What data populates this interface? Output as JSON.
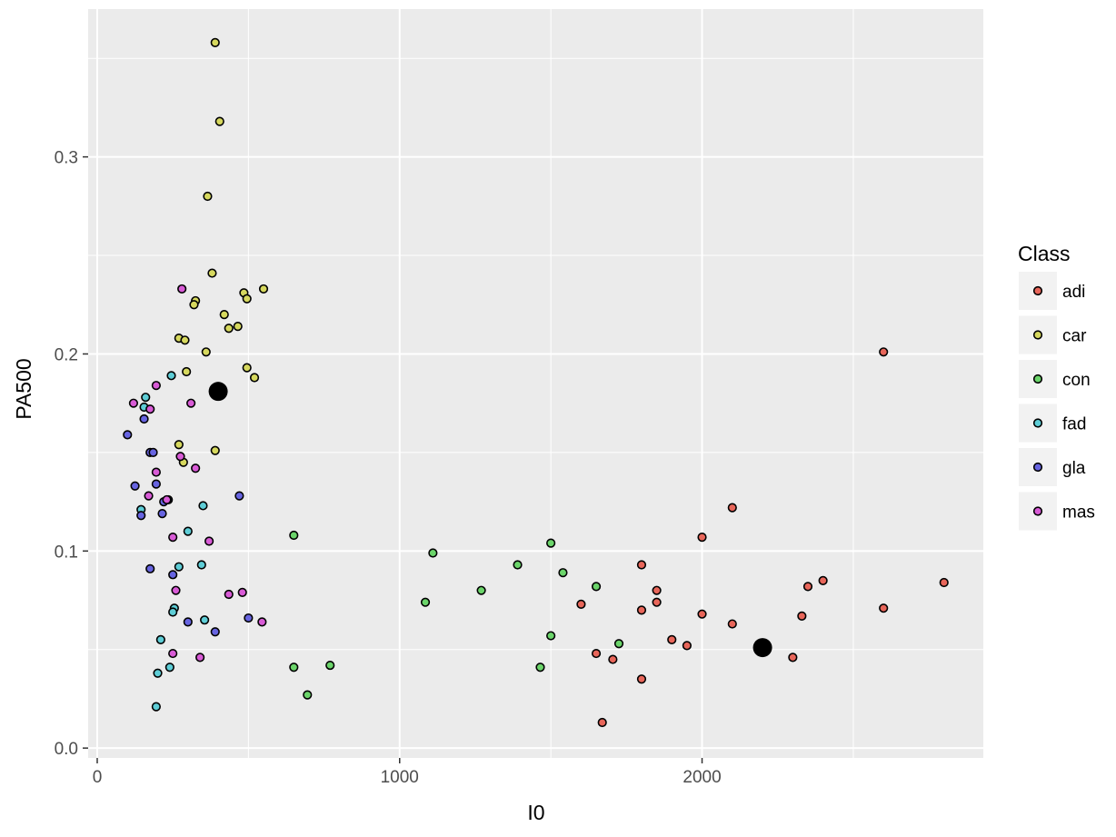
{
  "chart_data": {
    "type": "scatter",
    "xlabel": "I0",
    "ylabel": "PA500",
    "xlim": [
      -30,
      2930
    ],
    "ylim": [
      -0.005,
      0.375
    ],
    "x_ticks": [
      0,
      1000,
      2000
    ],
    "y_ticks": [
      0.0,
      0.1,
      0.2,
      0.3
    ],
    "x_tick_labels": [
      "0",
      "1000",
      "2000"
    ],
    "y_tick_labels": [
      "0.0",
      "0.1",
      "0.2",
      "0.3"
    ],
    "grid": true,
    "legend": {
      "title": "Class",
      "placement": "right",
      "entries": [
        "adi",
        "car",
        "con",
        "fad",
        "gla",
        "mas"
      ]
    },
    "colors": {
      "adi": "#e8665a",
      "car": "#d6d85e",
      "con": "#6bd46a",
      "fad": "#5ecdd6",
      "gla": "#6764e0",
      "mas": "#d85bd6",
      "centroid": "#000000",
      "panel": "#ebebeb",
      "grid": "#ffffff"
    },
    "series": [
      {
        "name": "adi",
        "points": [
          [
            1670,
            0.013
          ],
          [
            1800,
            0.035
          ],
          [
            1705,
            0.045
          ],
          [
            1650,
            0.048
          ],
          [
            1950,
            0.052
          ],
          [
            1900,
            0.055
          ],
          [
            2100,
            0.063
          ],
          [
            2000,
            0.068
          ],
          [
            1800,
            0.07
          ],
          [
            1850,
            0.074
          ],
          [
            1850,
            0.08
          ],
          [
            1600,
            0.073
          ],
          [
            1800,
            0.093
          ],
          [
            2000,
            0.107
          ],
          [
            2100,
            0.122
          ],
          [
            2300,
            0.046
          ],
          [
            2330,
            0.067
          ],
          [
            2600,
            0.071
          ],
          [
            2350,
            0.082
          ],
          [
            2400,
            0.085
          ],
          [
            2800,
            0.084
          ],
          [
            2600,
            0.201
          ]
        ]
      },
      {
        "name": "car",
        "points": [
          [
            390,
            0.358
          ],
          [
            405,
            0.318
          ],
          [
            365,
            0.28
          ],
          [
            380,
            0.241
          ],
          [
            485,
            0.231
          ],
          [
            550,
            0.233
          ],
          [
            325,
            0.227
          ],
          [
            320,
            0.225
          ],
          [
            495,
            0.228
          ],
          [
            420,
            0.22
          ],
          [
            435,
            0.213
          ],
          [
            465,
            0.214
          ],
          [
            270,
            0.208
          ],
          [
            290,
            0.207
          ],
          [
            360,
            0.201
          ],
          [
            495,
            0.193
          ],
          [
            520,
            0.188
          ],
          [
            295,
            0.191
          ],
          [
            270,
            0.154
          ],
          [
            390,
            0.151
          ],
          [
            285,
            0.145
          ]
        ]
      },
      {
        "name": "con",
        "points": [
          [
            650,
            0.108
          ],
          [
            650,
            0.041
          ],
          [
            695,
            0.027
          ],
          [
            770,
            0.042
          ],
          [
            1110,
            0.099
          ],
          [
            1085,
            0.074
          ],
          [
            1270,
            0.08
          ],
          [
            1390,
            0.093
          ],
          [
            1500,
            0.104
          ],
          [
            1540,
            0.089
          ],
          [
            1650,
            0.082
          ],
          [
            1500,
            0.057
          ],
          [
            1465,
            0.041
          ],
          [
            1725,
            0.053
          ]
        ]
      },
      {
        "name": "fad",
        "points": [
          [
            160,
            0.178
          ],
          [
            155,
            0.173
          ],
          [
            245,
            0.189
          ],
          [
            145,
            0.121
          ],
          [
            350,
            0.123
          ],
          [
            300,
            0.11
          ],
          [
            345,
            0.093
          ],
          [
            270,
            0.092
          ],
          [
            255,
            0.071
          ],
          [
            250,
            0.069
          ],
          [
            355,
            0.065
          ],
          [
            210,
            0.055
          ],
          [
            240,
            0.041
          ],
          [
            200,
            0.038
          ],
          [
            195,
            0.021
          ]
        ]
      },
      {
        "name": "gla",
        "points": [
          [
            100,
            0.159
          ],
          [
            155,
            0.167
          ],
          [
            175,
            0.15
          ],
          [
            185,
            0.15
          ],
          [
            125,
            0.133
          ],
          [
            195,
            0.134
          ],
          [
            470,
            0.128
          ],
          [
            235,
            0.126
          ],
          [
            220,
            0.125
          ],
          [
            145,
            0.118
          ],
          [
            215,
            0.119
          ],
          [
            175,
            0.091
          ],
          [
            250,
            0.088
          ],
          [
            300,
            0.064
          ],
          [
            500,
            0.066
          ],
          [
            390,
            0.059
          ]
        ]
      },
      {
        "name": "mas",
        "points": [
          [
            280,
            0.233
          ],
          [
            120,
            0.175
          ],
          [
            310,
            0.175
          ],
          [
            175,
            0.172
          ],
          [
            195,
            0.184
          ],
          [
            170,
            0.128
          ],
          [
            275,
            0.148
          ],
          [
            325,
            0.142
          ],
          [
            195,
            0.14
          ],
          [
            230,
            0.126
          ],
          [
            250,
            0.107
          ],
          [
            370,
            0.105
          ],
          [
            480,
            0.079
          ],
          [
            435,
            0.078
          ],
          [
            260,
            0.08
          ],
          [
            545,
            0.064
          ],
          [
            250,
            0.048
          ],
          [
            340,
            0.046
          ]
        ]
      }
    ],
    "centroids": [
      [
        400,
        0.181
      ],
      [
        2200,
        0.051
      ]
    ]
  }
}
